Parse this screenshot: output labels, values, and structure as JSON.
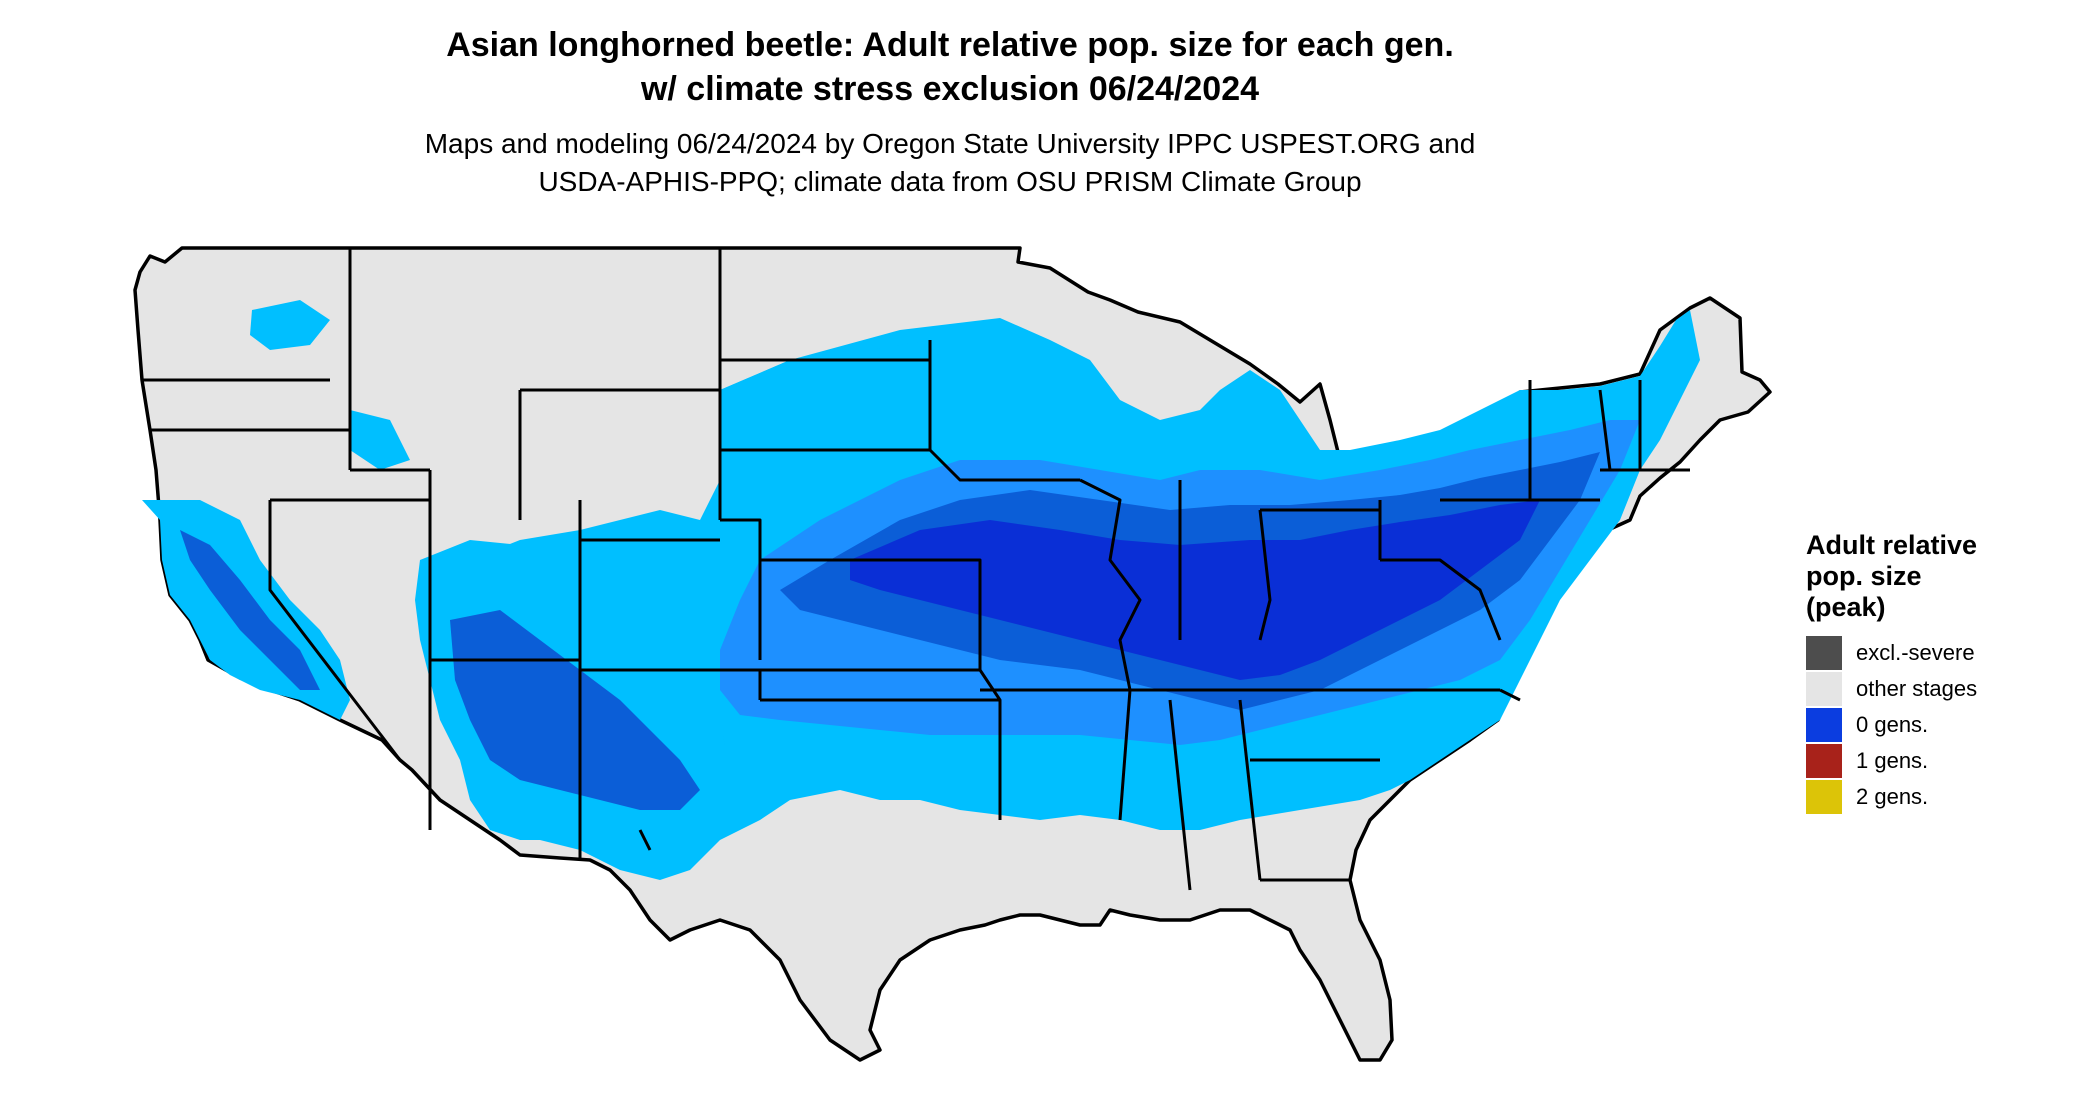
{
  "title_line1": "Asian longhorned beetle: Adult relative pop. size for each gen.",
  "title_line2": "w/ climate stress exclusion 06/24/2024",
  "subtitle_line1": "Maps and modeling 06/24/2024 by Oregon State University IPPC USPEST.ORG and",
  "subtitle_line2": "USDA-APHIS-PPQ; climate data from OSU PRISM Climate Group",
  "legend": {
    "title_line1": "Adult relative",
    "title_line2": "pop. size",
    "title_line3": "(peak)",
    "items": [
      {
        "label": "excl.-severe",
        "color": "#4d4d4d"
      },
      {
        "label": "other stages",
        "color": "#e5e5e5"
      },
      {
        "label": "0 gens.",
        "color": "#0b3de0"
      },
      {
        "label": "1 gens.",
        "color": "#a8221a"
      },
      {
        "label": "2 gens.",
        "color": "#dcc408"
      }
    ]
  },
  "map_colors": {
    "background_land": "#e5e5e5",
    "light_blue": "#00bfff",
    "medium_blue": "#1e90ff",
    "dark_blue": "#0b5ed7",
    "deep_blue": "#0a2fd6",
    "border": "#000000"
  }
}
